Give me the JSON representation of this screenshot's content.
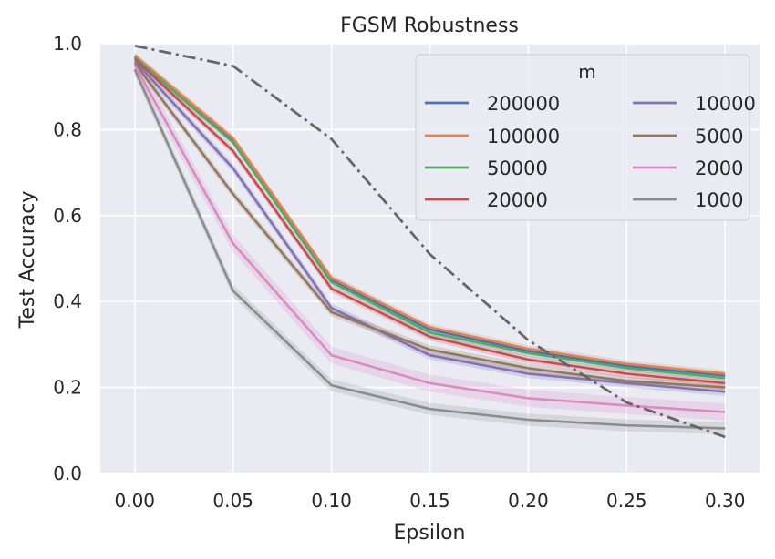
{
  "chart_data": {
    "type": "line",
    "title": "FGSM Robustness",
    "xlabel": "Epsilon",
    "ylabel": "Test Accuracy",
    "xlim": [
      -0.0175,
      0.3175
    ],
    "ylim": [
      0.0,
      1.0
    ],
    "xticks": [
      "0.00",
      "0.05",
      "0.10",
      "0.15",
      "0.20",
      "0.25",
      "0.30"
    ],
    "yticks": [
      "0.0",
      "0.2",
      "0.4",
      "0.6",
      "0.8",
      "1.0"
    ],
    "grid": true,
    "legend": {
      "title": "m",
      "placement": "top-right",
      "columns": 2
    },
    "x": [
      0.0,
      0.05,
      0.1,
      0.15,
      0.2,
      0.25,
      0.3
    ],
    "series": [
      {
        "name": "200000",
        "color": "#4c72b0",
        "values": [
          0.97,
          0.775,
          0.45,
          0.335,
          0.285,
          0.25,
          0.228
        ],
        "band": 0.008
      },
      {
        "name": "100000",
        "color": "#dd8452",
        "values": [
          0.972,
          0.78,
          0.455,
          0.34,
          0.29,
          0.255,
          0.232
        ],
        "band": 0.008
      },
      {
        "name": "50000",
        "color": "#55a868",
        "values": [
          0.968,
          0.77,
          0.445,
          0.328,
          0.28,
          0.245,
          0.222
        ],
        "band": 0.008
      },
      {
        "name": "20000",
        "color": "#c44e52",
        "values": [
          0.965,
          0.75,
          0.43,
          0.318,
          0.265,
          0.232,
          0.21
        ],
        "band": 0.009
      },
      {
        "name": "10000",
        "color": "#8172b3",
        "values": [
          0.96,
          0.71,
          0.385,
          0.275,
          0.232,
          0.21,
          0.19
        ],
        "band": 0.01
      },
      {
        "name": "5000",
        "color": "#937860",
        "values": [
          0.955,
          0.65,
          0.375,
          0.288,
          0.245,
          0.215,
          0.2
        ],
        "band": 0.01
      },
      {
        "name": "2000",
        "color": "#da8bc3",
        "values": [
          0.95,
          0.535,
          0.275,
          0.21,
          0.175,
          0.158,
          0.143
        ],
        "band": 0.02
      },
      {
        "name": "1000",
        "color": "#8c8c8c",
        "values": [
          0.94,
          0.425,
          0.205,
          0.15,
          0.125,
          0.112,
          0.105
        ],
        "band": 0.014
      }
    ],
    "reference_line": {
      "color": "#666666",
      "style": "dash-dot",
      "values": [
        0.995,
        0.948,
        0.778,
        0.51,
        0.31,
        0.165,
        0.085
      ]
    }
  }
}
